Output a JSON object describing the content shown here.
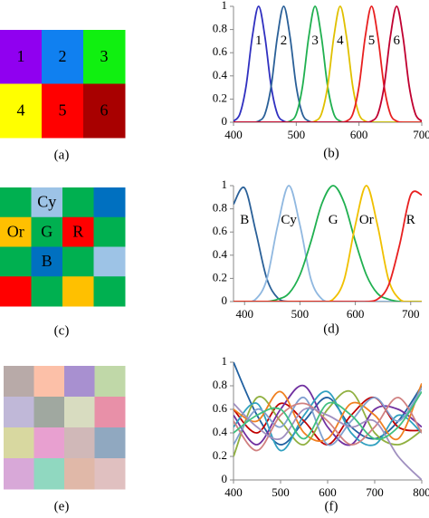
{
  "grids": [
    {
      "caption": "(a)",
      "cols": 3,
      "cells": [
        {
          "label": "1",
          "color": "#9000f0"
        },
        {
          "label": "2",
          "color": "#1080f0"
        },
        {
          "label": "3",
          "color": "#10f010"
        },
        {
          "label": "4",
          "color": "#ffff00"
        },
        {
          "label": "5",
          "color": "#ff0000"
        },
        {
          "label": "6",
          "color": "#a80000"
        }
      ]
    },
    {
      "caption": "(c)",
      "cols": 4,
      "cells": [
        {
          "color": "#00b050"
        },
        {
          "label": "Cy",
          "color": "#9dc3e6"
        },
        {
          "color": "#00b050"
        },
        {
          "color": "#0070c0"
        },
        {
          "label": "Or",
          "color": "#ffc000"
        },
        {
          "label": "G",
          "color": "#00b050"
        },
        {
          "label": "R",
          "color": "#ff0000"
        },
        {
          "color": "#00b050"
        },
        {
          "color": "#00b050"
        },
        {
          "label": "B",
          "color": "#0070c0"
        },
        {
          "color": "#00b050"
        },
        {
          "color": "#9dc3e6"
        },
        {
          "color": "#ff0000"
        },
        {
          "color": "#00b050"
        },
        {
          "color": "#ffc000"
        },
        {
          "color": "#00b050"
        }
      ]
    },
    {
      "caption": "(e)",
      "cols": 4,
      "cells": [
        {
          "color": "#b8aaa8"
        },
        {
          "color": "#fcc0a8"
        },
        {
          "color": "#a890d0"
        },
        {
          "color": "#c0d8a8"
        },
        {
          "color": "#c0b8d8"
        },
        {
          "color": "#a0a8a0"
        },
        {
          "color": "#d8dcc0"
        },
        {
          "color": "#e890a8"
        },
        {
          "color": "#d8d8a0"
        },
        {
          "color": "#e8a0d0"
        },
        {
          "color": "#d0b8b8"
        },
        {
          "color": "#90a8c0"
        },
        {
          "color": "#d8a8d8"
        },
        {
          "color": "#90d8c0"
        },
        {
          "color": "#e0b8a8"
        },
        {
          "color": "#e0c0c0"
        }
      ]
    }
  ],
  "chart_data": [
    {
      "type": "line",
      "caption": "(b)",
      "x": [
        400,
        410,
        420,
        430,
        440,
        450,
        460,
        470,
        480,
        490,
        500,
        510,
        520,
        530,
        540,
        550,
        560,
        570,
        580,
        590,
        600,
        610,
        620,
        630,
        640,
        650,
        660,
        670,
        680,
        690,
        700
      ],
      "xlim": [
        400,
        700
      ],
      "xticks": [
        400,
        500,
        600,
        700
      ],
      "ylim": [
        0,
        1
      ],
      "yticks": [
        0,
        0.2,
        0.4,
        0.6,
        0.8,
        1
      ],
      "series": [
        {
          "name": "1",
          "color": "#3030c0",
          "values": [
            0.01,
            0.07,
            0.31,
            0.74,
            1,
            0.74,
            0.31,
            0.07,
            0.01,
            0,
            0,
            0,
            0,
            0,
            0,
            0,
            0,
            0,
            0,
            0,
            0,
            0,
            0,
            0,
            0,
            0,
            0,
            0,
            0,
            0,
            0
          ]
        },
        {
          "name": "2",
          "color": "#2a6098",
          "values": [
            0,
            0,
            0,
            0,
            0.01,
            0.07,
            0.31,
            0.74,
            1,
            0.74,
            0.31,
            0.07,
            0.01,
            0,
            0,
            0,
            0,
            0,
            0,
            0,
            0,
            0,
            0,
            0,
            0,
            0,
            0,
            0,
            0,
            0,
            0
          ]
        },
        {
          "name": "3",
          "color": "#20b050",
          "values": [
            0,
            0,
            0,
            0,
            0,
            0,
            0,
            0,
            0,
            0.01,
            0.07,
            0.31,
            0.74,
            1,
            0.74,
            0.31,
            0.07,
            0.01,
            0,
            0,
            0,
            0,
            0,
            0,
            0,
            0,
            0,
            0,
            0,
            0,
            0
          ]
        },
        {
          "name": "4",
          "color": "#e0c000",
          "values": [
            0,
            0,
            0,
            0,
            0,
            0,
            0,
            0,
            0,
            0,
            0,
            0,
            0,
            0.01,
            0.07,
            0.31,
            0.74,
            1,
            0.74,
            0.31,
            0.07,
            0.01,
            0,
            0,
            0,
            0,
            0,
            0,
            0,
            0,
            0
          ]
        },
        {
          "name": "5",
          "color": "#e82020",
          "values": [
            0,
            0,
            0,
            0,
            0,
            0,
            0,
            0,
            0,
            0,
            0,
            0,
            0,
            0,
            0,
            0,
            0,
            0,
            0.01,
            0.07,
            0.31,
            0.74,
            1,
            0.74,
            0.31,
            0.07,
            0.01,
            0,
            0,
            0,
            0
          ]
        },
        {
          "name": "6",
          "color": "#c00030",
          "values": [
            0,
            0,
            0,
            0,
            0,
            0,
            0,
            0,
            0,
            0,
            0,
            0,
            0,
            0,
            0,
            0,
            0,
            0,
            0,
            0,
            0,
            0,
            0.01,
            0.07,
            0.31,
            0.74,
            1,
            0.74,
            0.31,
            0.07,
            0.01
          ]
        }
      ]
    },
    {
      "type": "line",
      "caption": "(d)",
      "x": [
        380,
        400,
        420,
        440,
        460,
        480,
        500,
        520,
        540,
        560,
        580,
        600,
        620,
        640,
        660,
        680,
        700,
        720
      ],
      "xlim": [
        380,
        720
      ],
      "xticks": [
        400,
        500,
        600,
        700
      ],
      "ylim": [
        0,
        1
      ],
      "yticks": [
        0,
        0.2,
        0.4,
        0.6,
        0.8,
        1
      ],
      "series": [
        {
          "name": "B",
          "color": "#2a6098",
          "values": [
            0.84,
            0.98,
            0.61,
            0.2,
            0.03,
            0,
            0,
            0,
            0,
            0,
            0,
            0,
            0,
            0,
            0,
            0,
            0,
            0
          ]
        },
        {
          "name": "Cy",
          "color": "#90b8e0",
          "values": [
            0,
            0,
            0.02,
            0.19,
            0.66,
            1,
            0.66,
            0.19,
            0.02,
            0,
            0,
            0,
            0,
            0,
            0,
            0,
            0,
            0
          ]
        },
        {
          "name": "G",
          "color": "#20b050",
          "values": [
            0,
            0,
            0,
            0,
            0.02,
            0.07,
            0.23,
            0.52,
            0.85,
            1,
            0.85,
            0.52,
            0.23,
            0.07,
            0.02,
            0,
            0,
            0
          ]
        },
        {
          "name": "Or",
          "color": "#f0c000",
          "values": [
            0,
            0,
            0,
            0,
            0,
            0,
            0,
            0,
            0,
            0.02,
            0.19,
            0.66,
            1,
            0.66,
            0.19,
            0.02,
            0,
            0
          ]
        },
        {
          "name": "R",
          "color": "#e82020",
          "values": [
            0,
            0,
            0,
            0,
            0,
            0,
            0,
            0,
            0,
            0,
            0,
            0,
            0,
            0.02,
            0.14,
            0.49,
            0.92,
            0.92
          ]
        }
      ]
    },
    {
      "type": "line",
      "caption": "(f)",
      "x": [
        400,
        450,
        500,
        550,
        600,
        650,
        700,
        750,
        800
      ],
      "xlim": [
        400,
        800
      ],
      "xticks": [
        400,
        500,
        600,
        700,
        800
      ],
      "ylim": [
        0,
        1
      ],
      "yticks": [
        0,
        0.2,
        0.4,
        0.6,
        0.8,
        1
      ],
      "series": [
        {
          "color": "#2060a0",
          "values": [
            1,
            0.55,
            0.3,
            0.5,
            0.7,
            0.45,
            0.35,
            0.5,
            0.8
          ]
        },
        {
          "color": "#c00000",
          "values": [
            0.6,
            0.4,
            0.65,
            0.5,
            0.3,
            0.55,
            0.7,
            0.45,
            0.42
          ]
        },
        {
          "color": "#90b040",
          "values": [
            0.2,
            0.7,
            0.5,
            0.3,
            0.6,
            0.75,
            0.4,
            0.3,
            0.42
          ]
        },
        {
          "color": "#7030a0",
          "values": [
            0.55,
            0.3,
            0.6,
            0.8,
            0.45,
            0.3,
            0.6,
            0.6,
            0.45
          ]
        },
        {
          "color": "#30a0c0",
          "values": [
            0.45,
            0.65,
            0.25,
            0.55,
            0.75,
            0.4,
            0.3,
            0.55,
            0.4
          ]
        },
        {
          "color": "#f08020",
          "values": [
            0.6,
            0.5,
            0.75,
            0.4,
            0.35,
            0.65,
            0.55,
            0.35,
            0.82
          ]
        },
        {
          "color": "#80a0d0",
          "values": [
            0.3,
            0.6,
            0.45,
            0.7,
            0.3,
            0.5,
            0.7,
            0.5,
            0.78
          ]
        },
        {
          "color": "#d08080",
          "values": [
            0.5,
            0.25,
            0.55,
            0.65,
            0.5,
            0.3,
            0.45,
            0.7,
            0.4
          ]
        },
        {
          "color": "#a090c0",
          "values": [
            0.65,
            0.45,
            0.35,
            0.6,
            0.55,
            0.45,
            0.5,
            0.2,
            0
          ]
        },
        {
          "color": "#40c080",
          "values": [
            0.4,
            0.55,
            0.6,
            0.35,
            0.65,
            0.55,
            0.35,
            0.45,
            0.75
          ]
        }
      ]
    }
  ]
}
